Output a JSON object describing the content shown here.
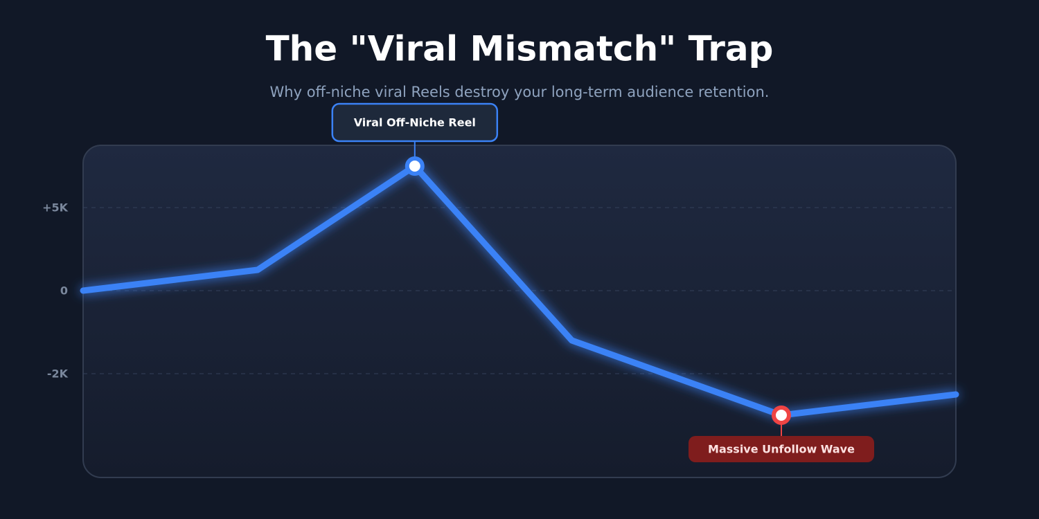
{
  "chart_data": {
    "type": "line",
    "title": "The \"Viral Mismatch\" Trap",
    "subtitle": "Why off-niche viral Reels destroy your long-term audience retention.",
    "x": [
      0,
      20,
      38,
      56,
      80,
      100
    ],
    "xlim": [
      0,
      100
    ],
    "series": [
      {
        "name": null,
        "color": "#3b82f6",
        "values": [
          0,
          1250,
          7500,
          -1200,
          -3000,
          -2500
        ]
      }
    ],
    "ylim": [
      -4500,
      8750
    ],
    "yticks": [
      {
        "value": 5000,
        "label": "+5K"
      },
      0,
      {
        "value": -2000,
        "label": "-2K"
      }
    ],
    "grid": true,
    "annotations": [
      "Viral Off-Niche Reel",
      "Massive Unfollow Wave"
    ]
  }
}
